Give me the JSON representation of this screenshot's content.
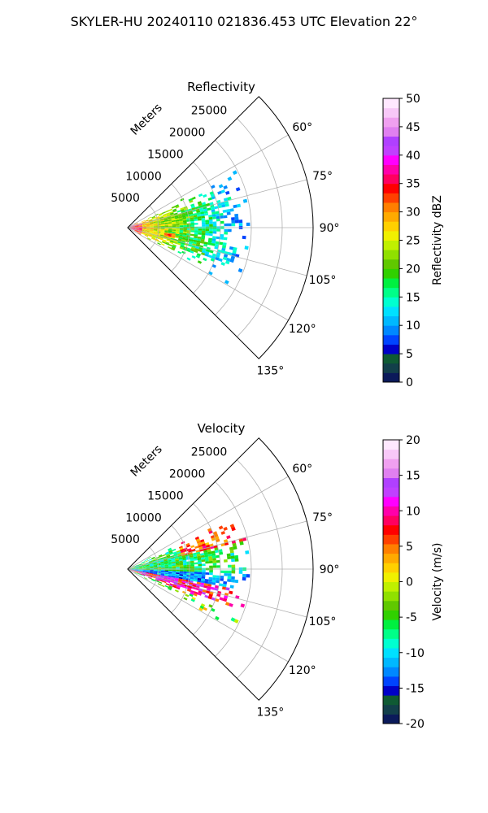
{
  "figure": {
    "suptitle": "SKYLER-HU  20240110  021836.453 UTC Elevation 22°"
  },
  "chart_data": [
    {
      "type": "polar-sector",
      "title": "Reflectivity",
      "radial_label": "Meters",
      "r_ticks": [
        5000,
        10000,
        15000,
        20000,
        25000
      ],
      "r_max": 30000,
      "theta_range_deg": [
        45,
        135
      ],
      "theta_ticks": [
        "60°",
        "75°",
        "90°",
        "105°",
        "120°",
        "135°"
      ],
      "theta_tick_values": [
        60,
        75,
        90,
        105,
        120,
        135
      ],
      "grid": true,
      "field": "reflectivity",
      "echo_extent": {
        "max_range_m": 19500,
        "azimuth_deg": [
          62,
          118
        ]
      },
      "colorbar": {
        "label": "Reflectivity dBZ",
        "min": 0,
        "max": 50,
        "ticks": [
          0,
          5,
          10,
          15,
          20,
          25,
          30,
          35,
          40,
          45,
          50
        ]
      }
    },
    {
      "type": "polar-sector",
      "title": "Velocity",
      "radial_label": "Meters",
      "r_ticks": [
        5000,
        10000,
        15000,
        20000,
        25000
      ],
      "r_max": 30000,
      "theta_range_deg": [
        45,
        135
      ],
      "theta_ticks": [
        "60°",
        "75°",
        "90°",
        "105°",
        "120°",
        "135°"
      ],
      "theta_tick_values": [
        60,
        75,
        90,
        105,
        120,
        135
      ],
      "grid": true,
      "field": "velocity",
      "echo_extent": {
        "max_range_m": 19500,
        "azimuth_deg": [
          62,
          118
        ]
      },
      "colorbar": {
        "label": "Velocity (m/s)",
        "min": -20,
        "max": 20,
        "ticks": [
          -20,
          -15,
          -10,
          -5,
          0,
          5,
          10,
          15,
          20
        ]
      }
    }
  ],
  "colormap": [
    "#0b1a5a",
    "#123f4a",
    "#0f5a34",
    "#0000c8",
    "#0044ff",
    "#0088ff",
    "#00b8ff",
    "#00e0ff",
    "#00ffd0",
    "#00ff88",
    "#00f040",
    "#30d000",
    "#60c800",
    "#90e000",
    "#c0f000",
    "#f0f000",
    "#ffd000",
    "#ffaa00",
    "#ff7f00",
    "#ff4000",
    "#ff0000",
    "#ff0060",
    "#ff00aa",
    "#ff00ff",
    "#c040ff",
    "#b040ff",
    "#e080f0",
    "#f0a0f0",
    "#f8c8f8",
    "#ffe8ff"
  ]
}
